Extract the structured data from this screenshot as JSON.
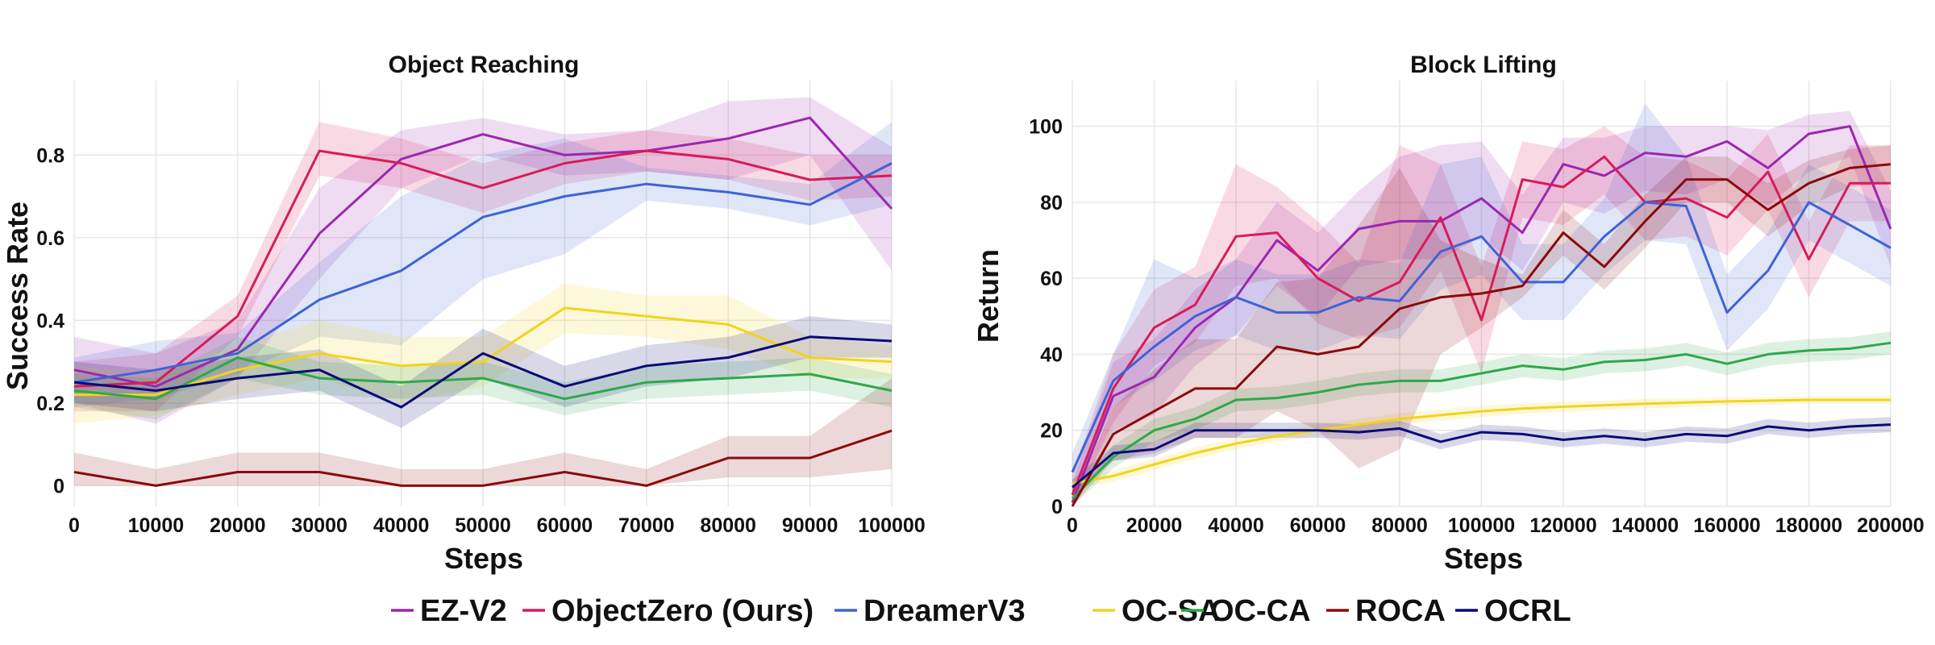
{
  "legend": {
    "title": "",
    "entries": [
      {
        "key": "ezv2",
        "label": "EZ-V2",
        "color": "#9b27b0"
      },
      {
        "key": "objectzero",
        "label": "ObjectZero (Ours)",
        "color": "#d81b5a"
      },
      {
        "key": "dreamer",
        "label": "DreamerV3",
        "color": "#3f63d6"
      },
      {
        "key": "ocsa",
        "label": "OC-SA",
        "color": "#f2d31b"
      },
      {
        "key": "occa",
        "label": "OC-CA",
        "color": "#2ea84a"
      },
      {
        "key": "roca",
        "label": "ROCA",
        "color": "#8b0a0a"
      },
      {
        "key": "ocrl",
        "label": "OCRL",
        "color": "#0a0a78"
      }
    ]
  },
  "chart_data": [
    {
      "type": "line",
      "title": "Object Reaching",
      "xlabel": "Steps",
      "ylabel": "Success Rate",
      "xlim": [
        0,
        100000
      ],
      "ylim": [
        -0.05,
        0.98
      ],
      "xticks": [
        0,
        10000,
        20000,
        30000,
        40000,
        50000,
        60000,
        70000,
        80000,
        90000,
        100000
      ],
      "xtick_labels": [
        "0",
        "10000",
        "20000",
        "30000",
        "40000",
        "50000",
        "60000",
        "70000",
        "80000",
        "90000",
        "100000"
      ],
      "yticks": [
        0,
        0.2,
        0.4,
        0.6,
        0.8
      ],
      "ytick_labels": [
        "0",
        "0.2",
        "0.4",
        "0.6",
        "0.8"
      ],
      "x": [
        0,
        10000,
        20000,
        30000,
        40000,
        50000,
        60000,
        70000,
        80000,
        90000,
        100000
      ],
      "series": [
        {
          "key": "ezv2",
          "name": "EZ-V2",
          "values": [
            0.28,
            0.24,
            0.33,
            0.61,
            0.79,
            0.85,
            0.8,
            0.81,
            0.84,
            0.89,
            0.67
          ],
          "lower": [
            0.2,
            0.15,
            0.26,
            0.5,
            0.72,
            0.8,
            0.75,
            0.76,
            0.74,
            0.8,
            0.52
          ],
          "upper": [
            0.36,
            0.32,
            0.4,
            0.72,
            0.86,
            0.89,
            0.85,
            0.86,
            0.93,
            0.94,
            0.82
          ]
        },
        {
          "key": "objectzero",
          "name": "ObjectZero (Ours)",
          "values": [
            0.24,
            0.25,
            0.41,
            0.81,
            0.78,
            0.72,
            0.78,
            0.81,
            0.79,
            0.74,
            0.75
          ],
          "lower": [
            0.18,
            0.18,
            0.36,
            0.75,
            0.72,
            0.66,
            0.73,
            0.76,
            0.74,
            0.69,
            0.7
          ],
          "upper": [
            0.3,
            0.32,
            0.46,
            0.88,
            0.84,
            0.78,
            0.83,
            0.86,
            0.84,
            0.8,
            0.8
          ]
        },
        {
          "key": "dreamer",
          "name": "DreamerV3",
          "values": [
            0.25,
            0.28,
            0.32,
            0.45,
            0.52,
            0.65,
            0.7,
            0.73,
            0.71,
            0.68,
            0.78
          ],
          "lower": [
            0.19,
            0.21,
            0.27,
            0.36,
            0.34,
            0.5,
            0.56,
            0.69,
            0.67,
            0.63,
            0.68
          ],
          "upper": [
            0.31,
            0.35,
            0.37,
            0.54,
            0.7,
            0.8,
            0.84,
            0.77,
            0.75,
            0.73,
            0.88
          ]
        },
        {
          "key": "ocsa",
          "name": "OC-SA",
          "values": [
            0.22,
            0.22,
            0.28,
            0.32,
            0.29,
            0.3,
            0.43,
            0.41,
            0.39,
            0.31,
            0.3
          ],
          "lower": [
            0.15,
            0.17,
            0.22,
            0.26,
            0.2,
            0.24,
            0.37,
            0.36,
            0.33,
            0.26,
            0.26
          ],
          "upper": [
            0.29,
            0.27,
            0.34,
            0.4,
            0.36,
            0.36,
            0.49,
            0.46,
            0.46,
            0.36,
            0.34
          ]
        },
        {
          "key": "occa",
          "name": "OC-CA",
          "values": [
            0.23,
            0.21,
            0.31,
            0.26,
            0.25,
            0.26,
            0.21,
            0.25,
            0.26,
            0.27,
            0.23
          ],
          "lower": [
            0.19,
            0.16,
            0.26,
            0.22,
            0.21,
            0.22,
            0.17,
            0.21,
            0.22,
            0.23,
            0.19
          ],
          "upper": [
            0.27,
            0.26,
            0.36,
            0.3,
            0.29,
            0.3,
            0.25,
            0.29,
            0.3,
            0.31,
            0.27
          ]
        },
        {
          "key": "roca",
          "name": "ROCA",
          "values": [
            0.033,
            0,
            0.033,
            0.033,
            0,
            0,
            0.033,
            0,
            0.067,
            0.067,
            0.133
          ],
          "lower": [
            0,
            0,
            0,
            0,
            0,
            0,
            0,
            0,
            0.02,
            0.02,
            0.04
          ],
          "upper": [
            0.08,
            0.04,
            0.08,
            0.08,
            0.04,
            0.04,
            0.08,
            0.04,
            0.12,
            0.12,
            0.26
          ]
        },
        {
          "key": "ocrl",
          "name": "OCRL",
          "values": [
            0.25,
            0.23,
            0.26,
            0.28,
            0.19,
            0.32,
            0.24,
            0.29,
            0.31,
            0.36,
            0.35
          ],
          "lower": [
            0.2,
            0.18,
            0.21,
            0.23,
            0.14,
            0.26,
            0.19,
            0.24,
            0.26,
            0.31,
            0.31
          ],
          "upper": [
            0.3,
            0.28,
            0.31,
            0.33,
            0.24,
            0.38,
            0.29,
            0.34,
            0.36,
            0.41,
            0.39
          ]
        }
      ]
    },
    {
      "type": "line",
      "title": "Block Lifting",
      "xlabel": "Steps",
      "ylabel": "Return",
      "xlim": [
        0,
        200000
      ],
      "ylim": [
        0,
        112
      ],
      "xticks": [
        0,
        20000,
        40000,
        60000,
        80000,
        100000,
        120000,
        140000,
        160000,
        180000,
        200000
      ],
      "xtick_labels": [
        "0",
        "20000",
        "40000",
        "60000",
        "80000",
        "100000",
        "120000",
        "140000",
        "160000",
        "180000",
        "200000"
      ],
      "yticks": [
        0,
        20,
        40,
        60,
        80,
        100
      ],
      "ytick_labels": [
        "0",
        "20",
        "40",
        "60",
        "80",
        "100"
      ],
      "series": [
        {
          "key": "ezv2",
          "name": "EZ-V2",
          "x": [
            0,
            10000,
            20000,
            30000,
            40000,
            50000,
            60000,
            70000,
            80000,
            90000,
            100000,
            110000,
            120000,
            130000,
            140000,
            150000,
            160000,
            170000,
            180000,
            190000,
            200000
          ],
          "values": [
            1,
            29,
            34,
            47,
            55,
            70,
            62,
            73,
            75,
            75,
            81,
            72,
            90,
            87,
            93,
            92,
            96,
            89,
            98,
            100,
            73
          ],
          "lower": [
            0,
            20,
            24,
            37,
            45,
            58,
            50,
            63,
            65,
            65,
            71,
            62,
            80,
            77,
            83,
            82,
            86,
            79,
            88,
            92,
            63
          ],
          "upper": [
            6,
            38,
            44,
            57,
            65,
            80,
            72,
            83,
            92,
            95,
            96,
            82,
            97,
            97,
            100,
            100,
            100,
            99,
            103,
            104,
            83
          ]
        },
        {
          "key": "objectzero",
          "name": "ObjectZero (Ours)",
          "x": [
            0,
            10000,
            20000,
            30000,
            40000,
            50000,
            60000,
            70000,
            80000,
            90000,
            100000,
            110000,
            120000,
            130000,
            140000,
            150000,
            160000,
            170000,
            180000,
            190000,
            200000
          ],
          "values": [
            3,
            31,
            47,
            53,
            71,
            72,
            60,
            54,
            59,
            76,
            49,
            86,
            84,
            92,
            80,
            81,
            76,
            88,
            65,
            85,
            85
          ],
          "lower": [
            0,
            22,
            37,
            43,
            58,
            60,
            48,
            44,
            47,
            62,
            35,
            76,
            74,
            82,
            70,
            71,
            66,
            78,
            55,
            75,
            75
          ],
          "upper": [
            8,
            40,
            57,
            63,
            90,
            84,
            75,
            64,
            95,
            90,
            63,
            96,
            94,
            100,
            92,
            91,
            86,
            98,
            75,
            95,
            95
          ]
        },
        {
          "key": "dreamer",
          "name": "DreamerV3",
          "x": [
            0,
            10000,
            20000,
            30000,
            40000,
            50000,
            60000,
            70000,
            80000,
            90000,
            100000,
            110000,
            120000,
            130000,
            140000,
            150000,
            160000,
            170000,
            180000,
            190000,
            200000
          ],
          "values": [
            9,
            33,
            42,
            50,
            55,
            51,
            51,
            55,
            54,
            67,
            71,
            59,
            59,
            71,
            80,
            79,
            51,
            62,
            80,
            74,
            68
          ],
          "lower": [
            4,
            26,
            33,
            41,
            45,
            41,
            41,
            45,
            44,
            57,
            61,
            49,
            49,
            61,
            70,
            69,
            41,
            52,
            70,
            64,
            58
          ],
          "upper": [
            14,
            40,
            65,
            60,
            65,
            61,
            61,
            65,
            64,
            90,
            92,
            69,
            69,
            81,
            106,
            92,
            61,
            72,
            90,
            84,
            78
          ]
        },
        {
          "key": "ocsa",
          "name": "OC-SA",
          "x": [
            0,
            10000,
            20000,
            30000,
            40000,
            50000,
            60000,
            70000,
            80000,
            90000,
            100000,
            110000,
            120000,
            130000,
            140000,
            150000,
            160000,
            170000,
            180000,
            190000,
            200000
          ],
          "values": [
            6,
            8,
            11,
            14,
            16.5,
            18.5,
            20,
            21.5,
            23,
            24,
            25,
            25.7,
            26.2,
            26.6,
            27,
            27.3,
            27.6,
            27.8,
            28,
            28,
            28
          ],
          "lower": [
            4.5,
            6.5,
            9.5,
            12.5,
            15,
            17,
            18.5,
            20,
            21.5,
            22.5,
            23.5,
            24.3,
            24.8,
            25.3,
            25.7,
            26.1,
            26.5,
            26.8,
            27,
            27,
            27
          ],
          "upper": [
            7.5,
            9.5,
            12.5,
            15.5,
            18,
            20,
            21.5,
            23,
            24.5,
            25.5,
            26.5,
            27.1,
            27.6,
            27.9,
            28.3,
            28.5,
            28.7,
            28.8,
            29,
            29,
            29
          ]
        },
        {
          "key": "occa",
          "name": "OC-CA",
          "x": [
            0,
            10000,
            20000,
            30000,
            40000,
            50000,
            60000,
            70000,
            80000,
            90000,
            100000,
            110000,
            120000,
            130000,
            140000,
            150000,
            160000,
            170000,
            180000,
            190000,
            200000
          ],
          "values": [
            2,
            13,
            20,
            23,
            28,
            28.5,
            30,
            32,
            33,
            33,
            35,
            37,
            36,
            38,
            38.5,
            40,
            37.5,
            40,
            41,
            41.5,
            43
          ],
          "lower": [
            0,
            10,
            17,
            20,
            25,
            25.5,
            27,
            29,
            30,
            30,
            32,
            34,
            33,
            35,
            35.5,
            37,
            34.5,
            37,
            38,
            38.5,
            40
          ],
          "upper": [
            4,
            16,
            23,
            26,
            31,
            31.5,
            33,
            35,
            36,
            36,
            38,
            40,
            39,
            41,
            41.5,
            43,
            40.5,
            43,
            44,
            44.5,
            46
          ]
        },
        {
          "key": "roca",
          "name": "ROCA",
          "x": [
            0,
            10000,
            20000,
            30000,
            40000,
            50000,
            60000,
            70000,
            80000,
            90000,
            100000,
            110000,
            120000,
            130000,
            140000,
            150000,
            160000,
            170000,
            180000,
            190000,
            200000
          ],
          "values": [
            0,
            19,
            25,
            31,
            31,
            42,
            40,
            42,
            52,
            55,
            56,
            58,
            72,
            63,
            75,
            86,
            86,
            78,
            85,
            89,
            90
          ],
          "lower": [
            0,
            12,
            14,
            18,
            18,
            25,
            20,
            10,
            15,
            40,
            47,
            55,
            66,
            57,
            68,
            80,
            80,
            71,
            79,
            84,
            85
          ],
          "upper": [
            2,
            26,
            36,
            44,
            44,
            59,
            60,
            74,
            89,
            70,
            65,
            61,
            78,
            69,
            82,
            92,
            92,
            85,
            91,
            94,
            95
          ]
        },
        {
          "key": "ocrl",
          "name": "OCRL",
          "x": [
            0,
            10000,
            20000,
            30000,
            40000,
            50000,
            60000,
            70000,
            80000,
            90000,
            100000,
            110000,
            120000,
            130000,
            140000,
            150000,
            160000,
            170000,
            180000,
            190000,
            200000
          ],
          "values": [
            5,
            14,
            15,
            20,
            20,
            20,
            20,
            19.5,
            20.5,
            17,
            19.5,
            19,
            17.5,
            18.5,
            17.5,
            19,
            18.5,
            21,
            20,
            21,
            21.5
          ],
          "lower": [
            3,
            12,
            13,
            18,
            18,
            18,
            18,
            17.5,
            18.5,
            15,
            17.5,
            17,
            15.5,
            16.5,
            15.5,
            17,
            16.5,
            19,
            18,
            19,
            19.5
          ],
          "upper": [
            7,
            16,
            17,
            22,
            22,
            22,
            22,
            21.5,
            22.5,
            19,
            21.5,
            21,
            19.5,
            20.5,
            19.5,
            21,
            20.5,
            23,
            22,
            23,
            23.5
          ]
        }
      ]
    }
  ]
}
